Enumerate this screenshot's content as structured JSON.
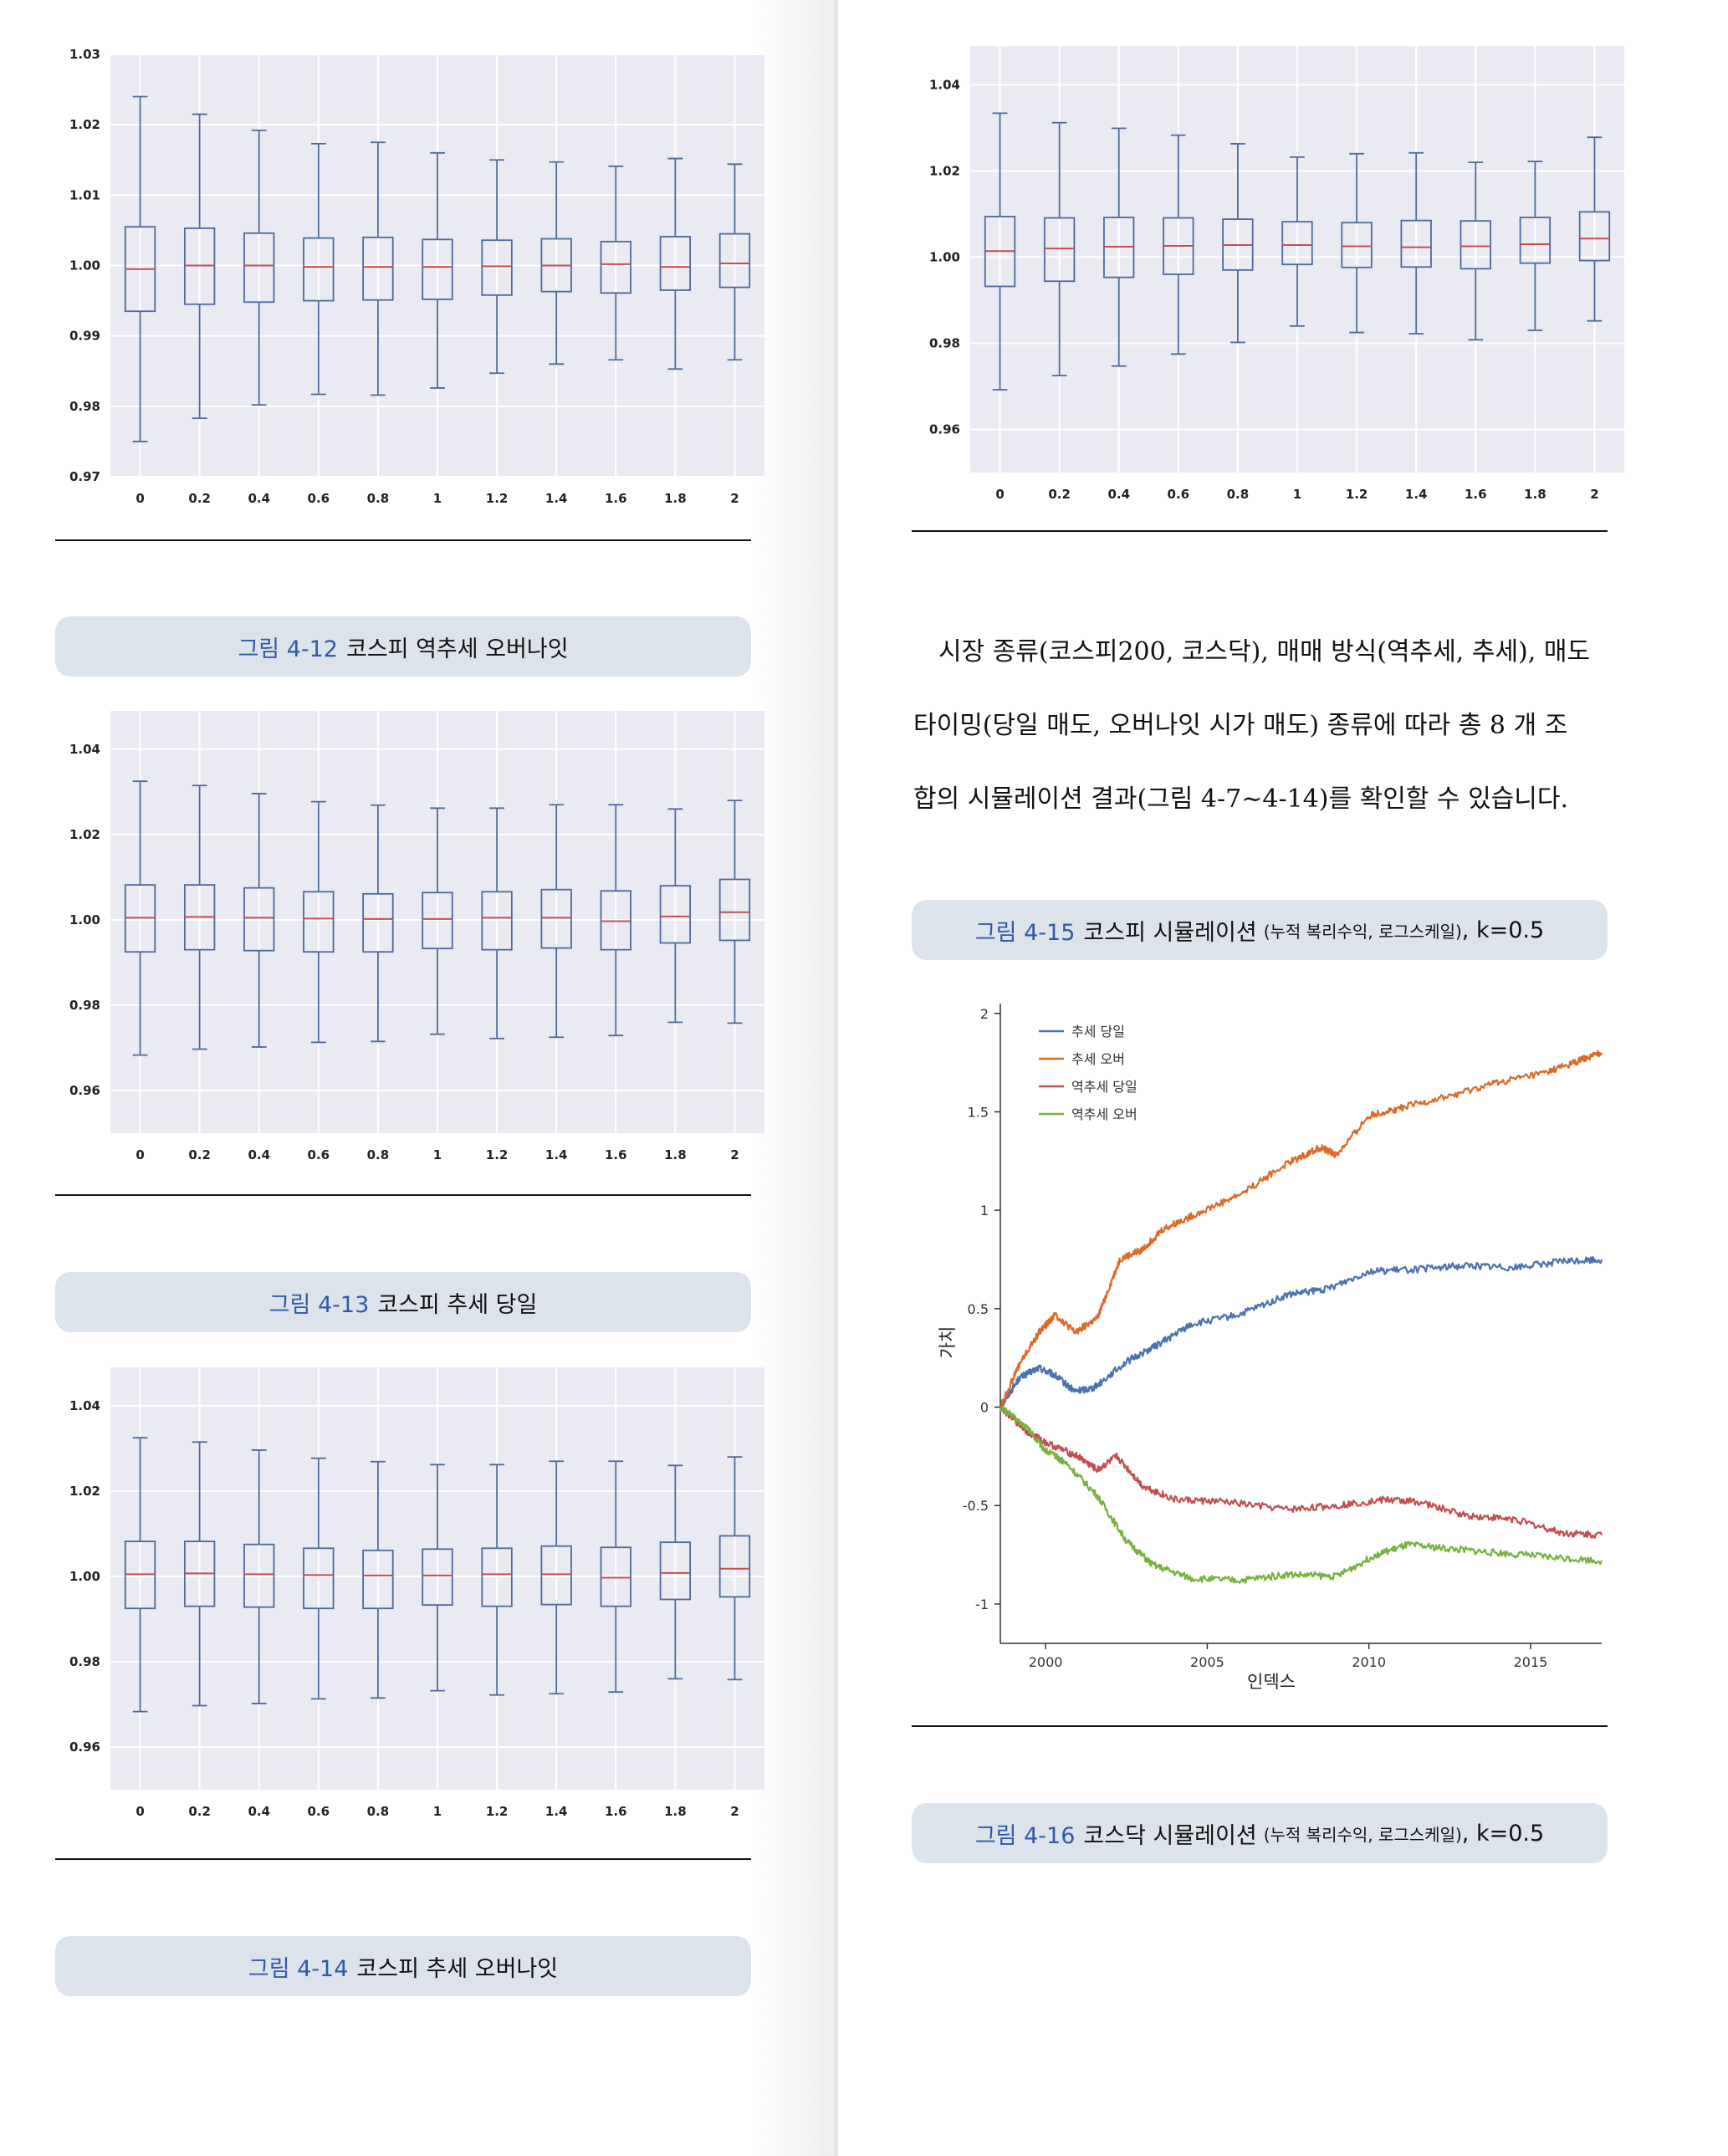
{
  "boxplots": [
    {
      "id": "kospi-reversal-overnight",
      "ylim": [
        0.97,
        1.03
      ],
      "y_ticks": [
        "0.97",
        "0.98",
        "0.99",
        "1.00",
        "1.01",
        "1.02",
        "1.03"
      ],
      "categories": [
        "0",
        "0.2",
        "0.4",
        "0.6",
        "0.8",
        "1",
        "1.2",
        "1.4",
        "1.6",
        "1.8",
        "2"
      ],
      "boxes": [
        {
          "whisker_low": 0.975,
          "q1": 0.9935,
          "median": 0.9995,
          "q3": 1.0055,
          "whisker_high": 1.024
        },
        {
          "whisker_low": 0.9783,
          "q1": 0.9945,
          "median": 1.0,
          "q3": 1.0053,
          "whisker_high": 1.0215
        },
        {
          "whisker_low": 0.9802,
          "q1": 0.9948,
          "median": 1.0,
          "q3": 1.0046,
          "whisker_high": 1.0192
        },
        {
          "whisker_low": 0.9817,
          "q1": 0.995,
          "median": 0.9998,
          "q3": 1.0039,
          "whisker_high": 1.0173
        },
        {
          "whisker_low": 0.9816,
          "q1": 0.9951,
          "median": 0.9998,
          "q3": 1.004,
          "whisker_high": 1.0175
        },
        {
          "whisker_low": 0.9826,
          "q1": 0.9952,
          "median": 0.9998,
          "q3": 1.0037,
          "whisker_high": 1.016
        },
        {
          "whisker_low": 0.9847,
          "q1": 0.9958,
          "median": 0.9999,
          "q3": 1.0036,
          "whisker_high": 1.015
        },
        {
          "whisker_low": 0.986,
          "q1": 0.9963,
          "median": 1.0,
          "q3": 1.0038,
          "whisker_high": 1.0147
        },
        {
          "whisker_low": 0.9866,
          "q1": 0.9961,
          "median": 1.0002,
          "q3": 1.0034,
          "whisker_high": 1.0141
        },
        {
          "whisker_low": 0.9853,
          "q1": 0.9965,
          "median": 0.9998,
          "q3": 1.0041,
          "whisker_high": 1.0152
        },
        {
          "whisker_low": 0.9866,
          "q1": 0.9969,
          "median": 1.0003,
          "q3": 1.0045,
          "whisker_high": 1.0144
        }
      ]
    },
    {
      "id": "kospi-trend-sameday",
      "ylim": [
        0.95,
        1.049
      ],
      "y_ticks": [
        "0.96",
        "0.98",
        "1.00",
        "1.02",
        "1.04"
      ],
      "categories": [
        "0",
        "0.2",
        "0.4",
        "0.6",
        "0.8",
        "1",
        "1.2",
        "1.4",
        "1.6",
        "1.8",
        "2"
      ],
      "boxes": [
        {
          "whisker_low": 0.9683,
          "q1": 0.9925,
          "median": 1.0005,
          "q3": 1.0082,
          "whisker_high": 1.0325
        },
        {
          "whisker_low": 0.9697,
          "q1": 0.993,
          "median": 1.0007,
          "q3": 1.0082,
          "whisker_high": 1.0315
        },
        {
          "whisker_low": 0.9702,
          "q1": 0.9928,
          "median": 1.0005,
          "q3": 1.0075,
          "whisker_high": 1.0296
        },
        {
          "whisker_low": 0.9713,
          "q1": 0.9925,
          "median": 1.0003,
          "q3": 1.0066,
          "whisker_high": 1.0277
        },
        {
          "whisker_low": 0.9715,
          "q1": 0.9925,
          "median": 1.0002,
          "q3": 1.0061,
          "whisker_high": 1.0269
        },
        {
          "whisker_low": 0.9732,
          "q1": 0.9933,
          "median": 1.0002,
          "q3": 1.0064,
          "whisker_high": 1.0262
        },
        {
          "whisker_low": 0.9722,
          "q1": 0.993,
          "median": 1.0005,
          "q3": 1.0066,
          "whisker_high": 1.0262
        },
        {
          "whisker_low": 0.9725,
          "q1": 0.9934,
          "median": 1.0005,
          "q3": 1.0071,
          "whisker_high": 1.027
        },
        {
          "whisker_low": 0.9729,
          "q1": 0.993,
          "median": 0.9997,
          "q3": 1.0068,
          "whisker_high": 1.027
        },
        {
          "whisker_low": 0.976,
          "q1": 0.9946,
          "median": 1.0008,
          "q3": 1.008,
          "whisker_high": 1.026
        },
        {
          "whisker_low": 0.9758,
          "q1": 0.9952,
          "median": 1.0018,
          "q3": 1.0095,
          "whisker_high": 1.028
        }
      ]
    },
    {
      "id": "kospi-trend-overnight",
      "ylim": [
        0.95,
        1.049
      ],
      "y_ticks": [
        "0.96",
        "0.98",
        "1.00",
        "1.02",
        "1.04"
      ],
      "categories": [
        "0",
        "0.2",
        "0.4",
        "0.6",
        "0.8",
        "1",
        "1.2",
        "1.4",
        "1.6",
        "1.8",
        "2"
      ],
      "boxes": [
        {
          "whisker_low": 0.9683,
          "q1": 0.9925,
          "median": 1.0005,
          "q3": 1.0082,
          "whisker_high": 1.0325
        },
        {
          "whisker_low": 0.9697,
          "q1": 0.993,
          "median": 1.0007,
          "q3": 1.0082,
          "whisker_high": 1.0315
        },
        {
          "whisker_low": 0.9702,
          "q1": 0.9928,
          "median": 1.0005,
          "q3": 1.0075,
          "whisker_high": 1.0296
        },
        {
          "whisker_low": 0.9713,
          "q1": 0.9925,
          "median": 1.0003,
          "q3": 1.0066,
          "whisker_high": 1.0277
        },
        {
          "whisker_low": 0.9715,
          "q1": 0.9925,
          "median": 1.0002,
          "q3": 1.0061,
          "whisker_high": 1.0269
        },
        {
          "whisker_low": 0.9732,
          "q1": 0.9933,
          "median": 1.0002,
          "q3": 1.0064,
          "whisker_high": 1.0262
        },
        {
          "whisker_low": 0.9722,
          "q1": 0.993,
          "median": 1.0005,
          "q3": 1.0066,
          "whisker_high": 1.0262
        },
        {
          "whisker_low": 0.9725,
          "q1": 0.9934,
          "median": 1.0005,
          "q3": 1.0071,
          "whisker_high": 1.027
        },
        {
          "whisker_low": 0.9729,
          "q1": 0.993,
          "median": 0.9997,
          "q3": 1.0068,
          "whisker_high": 1.027
        },
        {
          "whisker_low": 0.976,
          "q1": 0.9946,
          "median": 1.0008,
          "q3": 1.008,
          "whisker_high": 1.026
        },
        {
          "whisker_low": 0.9758,
          "q1": 0.9952,
          "median": 1.0018,
          "q3": 1.0095,
          "whisker_high": 1.028
        }
      ]
    },
    {
      "id": "kosdaq-reversal-overnight",
      "ylim": [
        0.95,
        1.049
      ],
      "y_ticks": [
        "0.96",
        "0.98",
        "1.00",
        "1.02",
        "1.04"
      ],
      "categories": [
        "0",
        "0.2",
        "0.4",
        "0.6",
        "0.8",
        "1",
        "1.2",
        "1.4",
        "1.6",
        "1.8",
        "2"
      ],
      "boxes": [
        {
          "whisker_low": 0.9692,
          "q1": 0.9932,
          "median": 1.0014,
          "q3": 1.0094,
          "whisker_high": 1.0334
        },
        {
          "whisker_low": 0.9725,
          "q1": 0.9944,
          "median": 1.002,
          "q3": 1.0091,
          "whisker_high": 1.0312
        },
        {
          "whisker_low": 0.9747,
          "q1": 0.9953,
          "median": 1.0024,
          "q3": 1.0092,
          "whisker_high": 1.0299
        },
        {
          "whisker_low": 0.9775,
          "q1": 0.996,
          "median": 1.0026,
          "q3": 1.0091,
          "whisker_high": 1.0283
        },
        {
          "whisker_low": 0.9802,
          "q1": 0.997,
          "median": 1.0028,
          "q3": 1.0088,
          "whisker_high": 1.0263
        },
        {
          "whisker_low": 0.984,
          "q1": 0.9983,
          "median": 1.0028,
          "q3": 1.0082,
          "whisker_high": 1.0232
        },
        {
          "whisker_low": 0.9825,
          "q1": 0.9976,
          "median": 1.0025,
          "q3": 1.008,
          "whisker_high": 1.024
        },
        {
          "whisker_low": 0.9822,
          "q1": 0.9977,
          "median": 1.0023,
          "q3": 1.0085,
          "whisker_high": 1.0242
        },
        {
          "whisker_low": 0.9808,
          "q1": 0.9973,
          "median": 1.0025,
          "q3": 1.0084,
          "whisker_high": 1.022
        },
        {
          "whisker_low": 0.983,
          "q1": 0.9986,
          "median": 1.003,
          "q3": 1.0092,
          "whisker_high": 1.0222
        },
        {
          "whisker_low": 0.9852,
          "q1": 0.9992,
          "median": 1.0043,
          "q3": 1.0105,
          "whisker_high": 1.0278
        }
      ]
    }
  ],
  "captions": {
    "fig_4_12": {
      "num": "그림 4-12",
      "title": "코스피 역추세 오버나잇"
    },
    "fig_4_13": {
      "num": "그림 4-13",
      "title": "코스피 추세 당일"
    },
    "fig_4_14": {
      "num": "그림 4-14",
      "title": "코스피 추세 오버나잇"
    },
    "fig_4_15": {
      "num": "그림 4-15",
      "title": "코스피 시뮬레이션",
      "small": "(누적 복리수익, 로그스케일)",
      "tail": ", k=0.5"
    },
    "fig_4_16": {
      "num": "그림 4-16",
      "title": "코스닥 시뮬레이션",
      "small": "(누적 복리수익, 로그스케일)",
      "tail": ", k=0.5"
    }
  },
  "paragraph": {
    "line1": "시장 종류(코스피200, 코스닥), 매매 방식(역추세, 추세), 매도",
    "line2": "타이밍(당일 매도, 오버나잇 시가 매도) 종류에 따라 총 8 개 조",
    "line3": "합의 시뮬레이션 결과(그림 4-7~4-14)를 확인할 수 있습니다."
  },
  "chart_data": {
    "type": "line",
    "xlabel": "인덱스",
    "ylabel": "가치",
    "xlim": [
      1998.6,
      2017.2
    ],
    "ylim": [
      -1.2,
      2.05
    ],
    "x_ticks": [
      "2000",
      "2005",
      "2010",
      "2015"
    ],
    "y_ticks": [
      "2",
      "1.5",
      "1",
      "0.5",
      "0",
      "-0.5",
      "-1"
    ],
    "legend_position": "top-left",
    "series": [
      {
        "name": "추세 당일",
        "color": "#4c72b0",
        "points": [
          [
            1998.6,
            0
          ],
          [
            1999.2,
            0.15
          ],
          [
            1999.8,
            0.2
          ],
          [
            2000.3,
            0.16
          ],
          [
            2000.9,
            0.08
          ],
          [
            2001.5,
            0.1
          ],
          [
            2002.5,
            0.23
          ],
          [
            2003.5,
            0.32
          ],
          [
            2004.5,
            0.42
          ],
          [
            2006,
            0.47
          ],
          [
            2007.5,
            0.57
          ],
          [
            2008.7,
            0.6
          ],
          [
            2010,
            0.69
          ],
          [
            2011.5,
            0.7
          ],
          [
            2013,
            0.72
          ],
          [
            2014.5,
            0.71
          ],
          [
            2016,
            0.74
          ],
          [
            2017.2,
            0.75
          ]
        ]
      },
      {
        "name": "추세 오버",
        "color": "#dd6a2a",
        "points": [
          [
            1998.6,
            0
          ],
          [
            1999.2,
            0.22
          ],
          [
            1999.8,
            0.38
          ],
          [
            2000.3,
            0.47
          ],
          [
            2000.9,
            0.38
          ],
          [
            2001.6,
            0.45
          ],
          [
            2002.3,
            0.75
          ],
          [
            2003,
            0.8
          ],
          [
            2003.6,
            0.9
          ],
          [
            2004.5,
            0.97
          ],
          [
            2006,
            1.08
          ],
          [
            2007.5,
            1.24
          ],
          [
            2008.5,
            1.32
          ],
          [
            2009,
            1.28
          ],
          [
            2010,
            1.48
          ],
          [
            2011,
            1.52
          ],
          [
            2012.5,
            1.58
          ],
          [
            2014,
            1.65
          ],
          [
            2015.5,
            1.7
          ],
          [
            2016.5,
            1.76
          ],
          [
            2017.2,
            1.8
          ]
        ]
      },
      {
        "name": "역추세 당일",
        "color": "#c44e52",
        "points": [
          [
            1998.6,
            0
          ],
          [
            1999.4,
            -0.12
          ],
          [
            2000,
            -0.18
          ],
          [
            2001,
            -0.25
          ],
          [
            2001.6,
            -0.32
          ],
          [
            2002.2,
            -0.25
          ],
          [
            2003,
            -0.4
          ],
          [
            2004,
            -0.47
          ],
          [
            2005.5,
            -0.48
          ],
          [
            2007.5,
            -0.52
          ],
          [
            2009,
            -0.5
          ],
          [
            2010.5,
            -0.47
          ],
          [
            2011.5,
            -0.48
          ],
          [
            2013,
            -0.55
          ],
          [
            2014.5,
            -0.57
          ],
          [
            2016,
            -0.64
          ],
          [
            2017.2,
            -0.65
          ]
        ]
      },
      {
        "name": "역추세 오버",
        "color": "#78b13c",
        "points": [
          [
            1998.6,
            0
          ],
          [
            1999.4,
            -0.1
          ],
          [
            2000,
            -0.22
          ],
          [
            2000.6,
            -0.28
          ],
          [
            2001.6,
            -0.45
          ],
          [
            2002.5,
            -0.68
          ],
          [
            2003.3,
            -0.8
          ],
          [
            2004.5,
            -0.87
          ],
          [
            2006,
            -0.88
          ],
          [
            2007.5,
            -0.85
          ],
          [
            2009,
            -0.86
          ],
          [
            2010.2,
            -0.75
          ],
          [
            2011.2,
            -0.7
          ],
          [
            2012.5,
            -0.72
          ],
          [
            2014,
            -0.74
          ],
          [
            2015.5,
            -0.76
          ],
          [
            2017.2,
            -0.78
          ]
        ]
      }
    ]
  }
}
